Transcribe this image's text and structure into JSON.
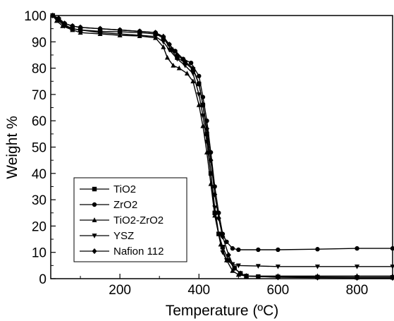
{
  "chart_data": {
    "type": "line",
    "xlabel": "Temperature (ºC)",
    "ylabel": "Weight %",
    "xlim": [
      25,
      890
    ],
    "ylim": [
      0,
      100
    ],
    "x_ticks": [
      200,
      400,
      600,
      800
    ],
    "y_ticks": [
      0,
      10,
      20,
      30,
      40,
      50,
      60,
      70,
      80,
      90,
      100
    ],
    "grid": false,
    "legend_position": "bottom-left",
    "series": [
      {
        "name": "TiO2",
        "marker": "square",
        "points": [
          [
            30,
            100
          ],
          [
            45,
            98.5
          ],
          [
            60,
            96.5
          ],
          [
            80,
            95
          ],
          [
            100,
            94.5
          ],
          [
            150,
            94
          ],
          [
            200,
            93.8
          ],
          [
            250,
            93.5
          ],
          [
            290,
            93
          ],
          [
            310,
            91.5
          ],
          [
            330,
            87
          ],
          [
            345,
            84
          ],
          [
            365,
            82
          ],
          [
            385,
            79.5
          ],
          [
            400,
            74
          ],
          [
            410,
            66
          ],
          [
            420,
            55
          ],
          [
            430,
            40
          ],
          [
            440,
            25
          ],
          [
            450,
            17
          ],
          [
            460,
            12
          ],
          [
            475,
            7
          ],
          [
            490,
            4
          ],
          [
            505,
            2
          ],
          [
            520,
            1
          ],
          [
            550,
            0.8
          ],
          [
            600,
            0.7
          ],
          [
            700,
            0.6
          ],
          [
            800,
            0.5
          ],
          [
            890,
            0.5
          ]
        ]
      },
      {
        "name": "ZrO2",
        "marker": "circle",
        "points": [
          [
            30,
            100
          ],
          [
            45,
            98.5
          ],
          [
            60,
            97
          ],
          [
            80,
            96
          ],
          [
            100,
            95.5
          ],
          [
            150,
            95
          ],
          [
            200,
            94.5
          ],
          [
            250,
            94
          ],
          [
            290,
            93.5
          ],
          [
            310,
            91.5
          ],
          [
            325,
            89
          ],
          [
            340,
            86.5
          ],
          [
            360,
            83.5
          ],
          [
            380,
            82
          ],
          [
            400,
            77
          ],
          [
            410,
            69
          ],
          [
            420,
            60
          ],
          [
            430,
            48
          ],
          [
            440,
            35
          ],
          [
            450,
            25
          ],
          [
            460,
            17
          ],
          [
            470,
            14
          ],
          [
            485,
            11.5
          ],
          [
            500,
            11
          ],
          [
            550,
            11
          ],
          [
            600,
            11
          ],
          [
            700,
            11.2
          ],
          [
            800,
            11.5
          ],
          [
            890,
            11.5
          ]
        ]
      },
      {
        "name": "TiO2-ZrO2",
        "marker": "triangle-up",
        "points": [
          [
            30,
            100
          ],
          [
            40,
            98
          ],
          [
            55,
            96
          ],
          [
            80,
            94.5
          ],
          [
            100,
            93.5
          ],
          [
            150,
            93
          ],
          [
            200,
            92.5
          ],
          [
            250,
            92.2
          ],
          [
            290,
            91.5
          ],
          [
            310,
            88
          ],
          [
            320,
            84
          ],
          [
            335,
            81
          ],
          [
            350,
            80
          ],
          [
            370,
            78
          ],
          [
            385,
            75
          ],
          [
            400,
            66
          ],
          [
            410,
            58
          ],
          [
            420,
            48
          ],
          [
            430,
            36
          ],
          [
            440,
            24
          ],
          [
            455,
            13
          ],
          [
            470,
            7
          ],
          [
            485,
            3
          ],
          [
            500,
            1.5
          ],
          [
            520,
            1
          ],
          [
            600,
            1
          ],
          [
            700,
            1
          ],
          [
            800,
            1
          ],
          [
            890,
            1
          ]
        ]
      },
      {
        "name": "YSZ",
        "marker": "triangle-down",
        "points": [
          [
            30,
            100
          ],
          [
            45,
            98
          ],
          [
            60,
            96
          ],
          [
            80,
            95
          ],
          [
            100,
            94.5
          ],
          [
            150,
            93.5
          ],
          [
            200,
            93
          ],
          [
            250,
            92.5
          ],
          [
            290,
            92
          ],
          [
            310,
            90
          ],
          [
            325,
            87
          ],
          [
            345,
            83.5
          ],
          [
            365,
            81
          ],
          [
            385,
            78
          ],
          [
            400,
            70
          ],
          [
            410,
            62
          ],
          [
            420,
            52
          ],
          [
            430,
            40
          ],
          [
            440,
            27
          ],
          [
            450,
            17
          ],
          [
            460,
            10
          ],
          [
            470,
            7
          ],
          [
            485,
            5.5
          ],
          [
            500,
            5
          ],
          [
            550,
            4.8
          ],
          [
            600,
            4.6
          ],
          [
            700,
            4.6
          ],
          [
            800,
            4.6
          ],
          [
            890,
            4.6
          ]
        ]
      },
      {
        "name": "Nafion 112",
        "marker": "diamond",
        "points": [
          [
            30,
            100
          ],
          [
            45,
            99
          ],
          [
            60,
            97
          ],
          [
            80,
            96
          ],
          [
            100,
            95.5
          ],
          [
            150,
            95
          ],
          [
            200,
            94.5
          ],
          [
            250,
            94
          ],
          [
            290,
            93.5
          ],
          [
            310,
            92
          ],
          [
            325,
            89
          ],
          [
            345,
            85
          ],
          [
            365,
            82.5
          ],
          [
            385,
            80
          ],
          [
            400,
            74
          ],
          [
            410,
            66
          ],
          [
            420,
            57
          ],
          [
            430,
            45
          ],
          [
            440,
            32
          ],
          [
            450,
            23
          ],
          [
            460,
            16
          ],
          [
            475,
            9
          ],
          [
            490,
            4
          ],
          [
            505,
            2
          ],
          [
            520,
            1
          ],
          [
            600,
            0.5
          ],
          [
            700,
            0.4
          ],
          [
            800,
            0.3
          ],
          [
            890,
            0.3
          ]
        ]
      }
    ]
  }
}
